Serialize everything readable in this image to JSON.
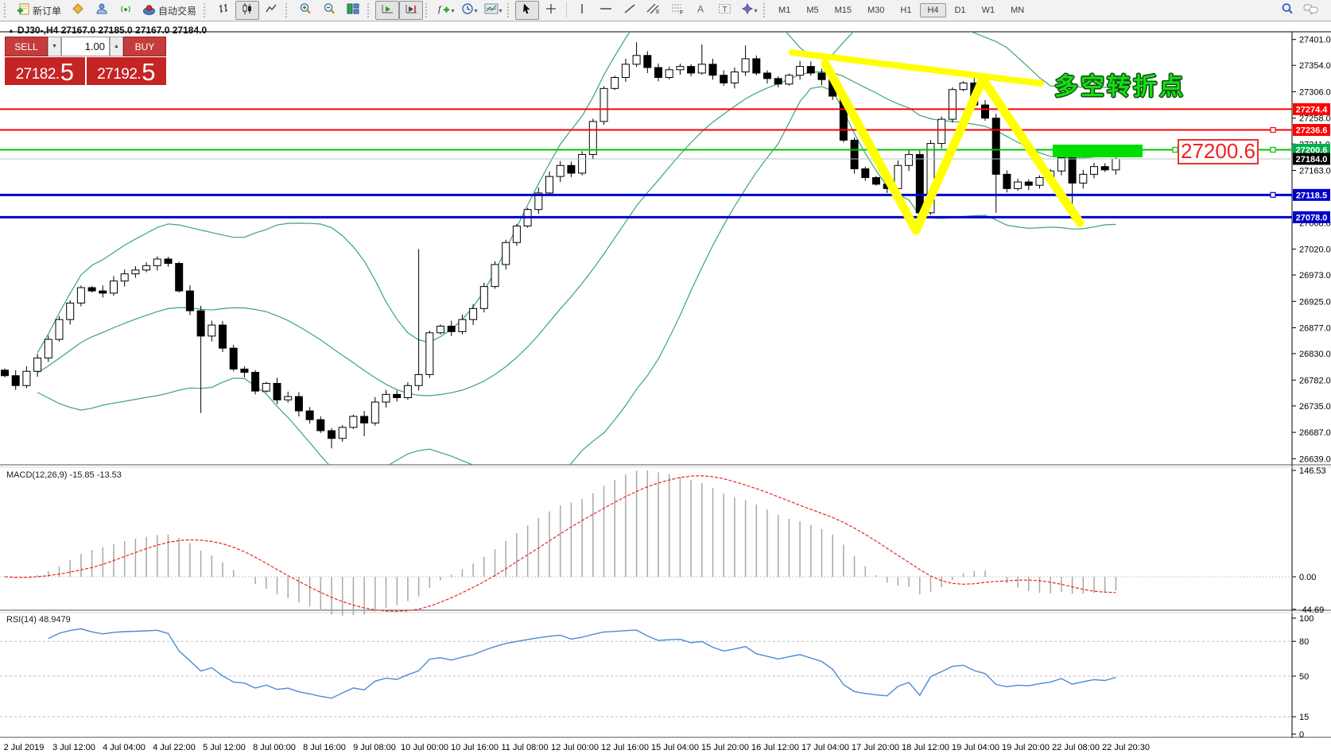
{
  "toolbar": {
    "new_order_label": "新订单",
    "autotrade_label": "自动交易",
    "timeframes": [
      "M1",
      "M5",
      "M15",
      "M30",
      "H1",
      "H4",
      "D1",
      "W1",
      "MN"
    ],
    "active_timeframe": "H4"
  },
  "chart_header": {
    "title": "DJ30-,H4 27167.0 27185.0 27167.0 27184.0"
  },
  "trade_panel": {
    "sell_label": "SELL",
    "buy_label": "BUY",
    "volume": "1.00",
    "sell_price_int": "27182.",
    "sell_price_frac": "5",
    "buy_price_int": "27192.",
    "buy_price_frac": "5"
  },
  "annotations": {
    "turning_point": "多空转折点",
    "price_callout": "27200.6"
  },
  "indicator_labels": {
    "macd": "MACD(12,26,9) -15.85 -13.53",
    "rsi": "RSI(14) 48.9479"
  },
  "chart_data": {
    "type": "candlestick",
    "symbol": "DJ30-",
    "timeframe": "H4",
    "ohlc_display": [
      27167.0,
      27185.0,
      27167.0,
      27184.0
    ],
    "current_price": 27184.0,
    "y_ticks": [
      27401,
      27354,
      27306,
      27258,
      27211,
      27163,
      27116,
      27068,
      27020,
      26973,
      26925,
      26877,
      26830,
      26782,
      26735,
      26687,
      26639
    ],
    "first_open": 26800,
    "closes": [
      26790,
      26772,
      26798,
      26822,
      26856,
      26892,
      26922,
      26950,
      26944,
      26940,
      26962,
      26975,
      26982,
      26990,
      27002,
      26994,
      26944,
      26908,
      26862,
      26882,
      26840,
      26802,
      26796,
      26762,
      26776,
      26746,
      26752,
      26726,
      26710,
      26690,
      26676,
      26696,
      26716,
      26704,
      26742,
      26756,
      26750,
      26772,
      26792,
      26868,
      26880,
      26870,
      26892,
      26912,
      26952,
      26992,
      27032,
      27062,
      27092,
      27122,
      27152,
      27172,
      27158,
      27192,
      27252,
      27312,
      27332,
      27356,
      27372,
      27350,
      27332,
      27346,
      27352,
      27340,
      27356,
      27336,
      27322,
      27342,
      27366,
      27340,
      27330,
      27320,
      27336,
      27352,
      27340,
      27328,
      27298,
      27218,
      27166,
      27150,
      27138,
      27130,
      27172,
      27192,
      27086,
      27212,
      27256,
      27310,
      27322,
      27282,
      27258,
      27156,
      27130,
      27142,
      27136,
      27150,
      27162,
      27186,
      27140,
      27156,
      27170,
      27164,
      27184
    ],
    "wick_overrides": {
      "18": {
        "low": 26722
      },
      "30": {
        "low": 26658
      },
      "33": {
        "low": 26680
      },
      "38": {
        "high": 27020
      },
      "58": {
        "high": 27396
      },
      "64": {
        "high": 27392
      },
      "68": {
        "high": 27390
      },
      "82": {
        "low": 27108
      },
      "84": {
        "low": 27070
      },
      "91": {
        "low": 27086
      },
      "98": {
        "low": 27074
      }
    },
    "bollinger": {
      "period": 20,
      "deviation": 2,
      "color": "#3aa76d"
    },
    "hlines": [
      {
        "price": 27274.4,
        "color": "#ff0000",
        "width": 2,
        "badge": "#ff0000",
        "handle": false
      },
      {
        "price": 27236.6,
        "color": "#ff0000",
        "width": 2,
        "badge": "#ff0000",
        "handle": true
      },
      {
        "price": 27200.6,
        "color": "#00c400",
        "width": 2,
        "badge": "#00b14a",
        "handle": true
      },
      {
        "price": 27184.0,
        "color": "#c0c0c0",
        "width": 1,
        "badge": "#000000",
        "handle": false
      },
      {
        "price": 27118.5,
        "color": "#0000cc",
        "width": 3,
        "badge": "#0000cc",
        "handle": true
      },
      {
        "price": 27078.0,
        "color": "#0000cc",
        "width": 3,
        "badge": "#0000cc",
        "handle": false
      }
    ],
    "x_labels": [
      "2 Jul 2019",
      "3 Jul 12:00",
      "4 Jul 04:00",
      "4 Jul 22:00",
      "5 Jul 12:00",
      "8 Jul 00:00",
      "8 Jul 16:00",
      "9 Jul 08:00",
      "10 Jul 00:00",
      "10 Jul 16:00",
      "11 Jul 08:00",
      "12 Jul 00:00",
      "12 Jul 16:00",
      "15 Jul 04:00",
      "15 Jul 20:00",
      "16 Jul 12:00",
      "17 Jul 04:00",
      "17 Jul 20:00",
      "18 Jul 12:00",
      "19 Jul 04:00",
      "19 Jul 20:00",
      "22 Jul 08:00",
      "22 Jul 20:30"
    ],
    "macd": {
      "params": [
        12,
        26,
        9
      ],
      "value": -15.85,
      "signal_value": -13.53,
      "axis": [
        {
          "v": 146.53,
          "t": "146.53"
        },
        {
          "v": 0,
          "t": "0.00"
        },
        {
          "v": -44.69,
          "t": "-44.69"
        }
      ],
      "bar_color": "#a8a8a8",
      "signal_color": "#ee2222"
    },
    "rsi": {
      "period": 14,
      "value": 48.9479,
      "axis": [
        {
          "v": 100,
          "t": "100"
        },
        {
          "v": 80,
          "t": "80"
        },
        {
          "v": 50,
          "t": "50"
        },
        {
          "v": 15,
          "t": "15"
        },
        {
          "v": 0,
          "t": "0"
        }
      ],
      "levels": [
        80,
        50,
        15
      ],
      "line_color": "#4a8bd4"
    },
    "drawings": {
      "trendline": {
        "points": [
          [
            996,
            38
          ],
          [
            1309,
            77
          ]
        ],
        "color": "#ffff00",
        "width": 8
      },
      "zigzag": {
        "points": [
          [
            1038,
            52
          ],
          [
            1152,
            262
          ],
          [
            1236,
            72
          ],
          [
            1358,
            252
          ]
        ],
        "color": "#ffff00",
        "width": 11
      },
      "rect": {
        "x": 1324,
        "y": 154,
        "w": 113,
        "h": 16,
        "color": "#00dd00"
      }
    }
  }
}
